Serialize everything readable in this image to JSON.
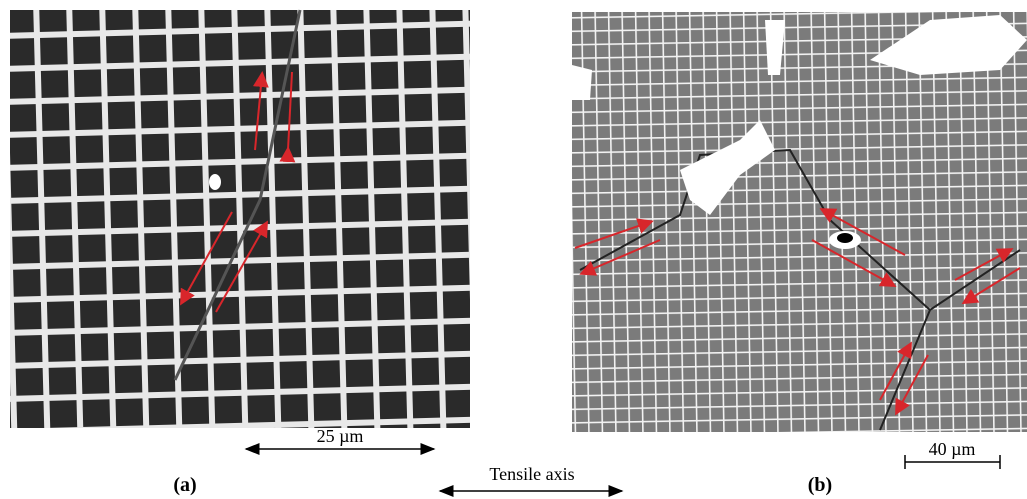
{
  "panels": [
    {
      "label": "(a)",
      "scale_bar": "25 µm"
    },
    {
      "label": "(b)",
      "scale_bar": "40 µm"
    }
  ],
  "axis_label": "Tensile axis"
}
